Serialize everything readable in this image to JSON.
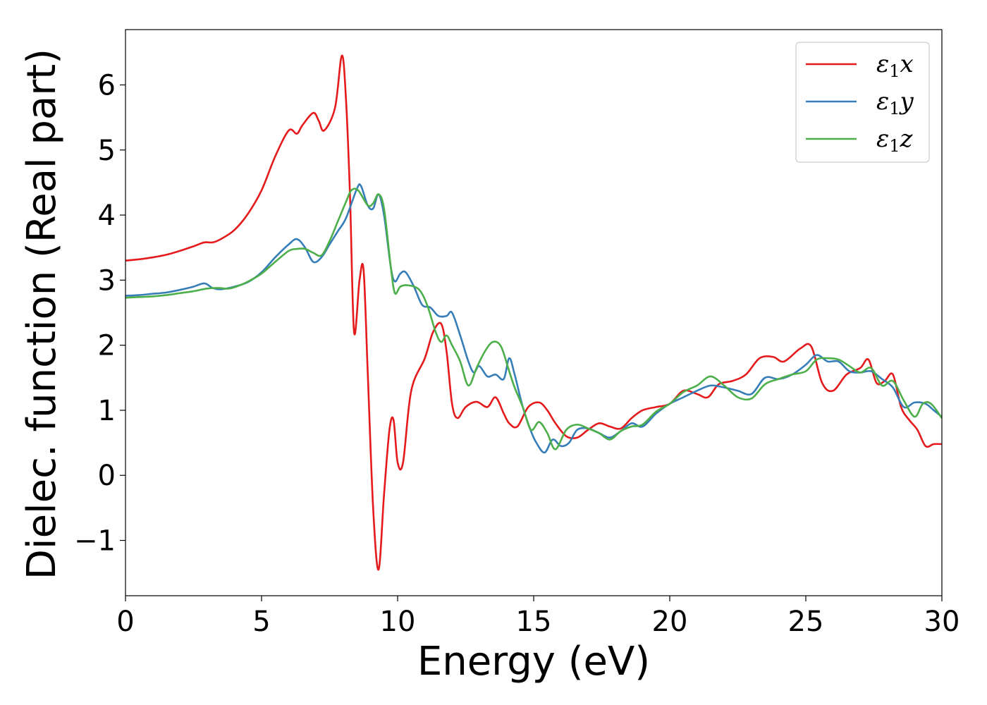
{
  "chart_data": {
    "type": "line",
    "title": "",
    "xlabel": "Energy (eV)",
    "ylabel": "Dielec. function (Real part)",
    "xlim": [
      0,
      30
    ],
    "ylim": [
      -1.85,
      6.85
    ],
    "xticks": [
      0,
      5,
      10,
      15,
      20,
      25,
      30
    ],
    "yticks": [
      -1,
      0,
      1,
      2,
      3,
      4,
      5,
      6
    ],
    "ytick_labels": [
      "−1",
      "0",
      "1",
      "2",
      "3",
      "4",
      "5",
      "6"
    ],
    "grid": false,
    "legend": "top-right",
    "series": [
      {
        "name": "ε₁x",
        "name_main": "ε",
        "name_sub": "1",
        "name_tail": "x",
        "color": "#e41a1c",
        "x": [
          0,
          0.5,
          1,
          1.5,
          2,
          2.5,
          2.9,
          3.2,
          3.5,
          4,
          4.5,
          5,
          5.5,
          6,
          6.3,
          6.5,
          6.9,
          7.1,
          7.3,
          7.7,
          7.95,
          8.1,
          8.25,
          8.4,
          8.6,
          8.75,
          8.9,
          9.1,
          9.3,
          9.5,
          9.7,
          9.85,
          10.0,
          10.2,
          10.5,
          11.0,
          11.3,
          11.6,
          11.8,
          12.0,
          12.2,
          12.5,
          12.9,
          13.3,
          13.6,
          13.9,
          14.1,
          14.4,
          14.8,
          15.2,
          15.5,
          15.8,
          16.2,
          16.6,
          17.0,
          17.4,
          17.8,
          18.2,
          18.6,
          19.0,
          19.5,
          20.0,
          20.5,
          21.0,
          21.4,
          21.8,
          22.3,
          22.8,
          23.3,
          23.8,
          24.2,
          24.8,
          25.2,
          25.6,
          26.0,
          26.5,
          27.0,
          27.3,
          27.6,
          27.9,
          28.2,
          28.5,
          28.8,
          29.1,
          29.4,
          29.7,
          30.0
        ],
        "y": [
          3.3,
          3.32,
          3.35,
          3.39,
          3.45,
          3.52,
          3.58,
          3.58,
          3.63,
          3.77,
          4.02,
          4.38,
          4.9,
          5.3,
          5.25,
          5.38,
          5.57,
          5.45,
          5.3,
          5.65,
          6.45,
          5.8,
          4.3,
          2.2,
          3.0,
          3.15,
          1.6,
          -0.5,
          -1.45,
          -0.3,
          0.7,
          0.85,
          0.2,
          0.2,
          1.3,
          1.8,
          2.2,
          2.33,
          1.9,
          1.1,
          0.88,
          1.05,
          1.13,
          1.05,
          1.2,
          0.95,
          0.8,
          0.75,
          1.05,
          1.12,
          1.0,
          0.8,
          0.6,
          0.58,
          0.7,
          0.8,
          0.75,
          0.72,
          0.88,
          1.0,
          1.05,
          1.1,
          1.3,
          1.25,
          1.2,
          1.4,
          1.45,
          1.55,
          1.8,
          1.82,
          1.75,
          1.95,
          1.98,
          1.42,
          1.3,
          1.55,
          1.65,
          1.78,
          1.42,
          1.45,
          1.55,
          1.05,
          0.85,
          0.7,
          0.45,
          0.48,
          0.48
        ]
      },
      {
        "name": "ε₁y",
        "name_main": "ε",
        "name_sub": "1",
        "name_tail": "y",
        "color": "#377eb8",
        "x": [
          0,
          0.5,
          1,
          1.5,
          2,
          2.5,
          2.9,
          3.2,
          3.5,
          4,
          4.5,
          5,
          5.5,
          6,
          6.3,
          6.6,
          6.9,
          7.2,
          7.5,
          7.8,
          8.1,
          8.5,
          8.65,
          8.9,
          9.1,
          9.3,
          9.5,
          9.75,
          9.9,
          10.1,
          10.3,
          10.6,
          10.9,
          11.2,
          11.5,
          11.8,
          12.0,
          12.3,
          12.6,
          12.8,
          13.0,
          13.3,
          13.6,
          13.9,
          14.1,
          14.3,
          14.6,
          14.9,
          15.1,
          15.4,
          15.7,
          16.0,
          16.3,
          16.6,
          17.0,
          17.4,
          17.8,
          18.2,
          18.6,
          19.0,
          19.5,
          20.0,
          20.5,
          21.0,
          21.5,
          22.0,
          22.5,
          23.0,
          23.5,
          24.0,
          24.5,
          25.0,
          25.4,
          25.8,
          26.2,
          26.6,
          27.0,
          27.4,
          27.8,
          28.2,
          28.6,
          29.0,
          29.4,
          29.7,
          30.0
        ],
        "y": [
          2.76,
          2.77,
          2.79,
          2.81,
          2.85,
          2.9,
          2.95,
          2.88,
          2.86,
          2.9,
          2.97,
          3.12,
          3.35,
          3.55,
          3.63,
          3.5,
          3.28,
          3.35,
          3.55,
          3.75,
          3.95,
          4.4,
          4.45,
          4.15,
          4.1,
          4.32,
          4.0,
          3.2,
          2.98,
          3.1,
          3.12,
          2.9,
          2.62,
          2.58,
          2.45,
          2.45,
          2.5,
          2.15,
          1.75,
          1.58,
          1.68,
          1.52,
          1.55,
          1.48,
          1.8,
          1.55,
          1.05,
          0.68,
          0.5,
          0.35,
          0.55,
          0.45,
          0.5,
          0.7,
          0.72,
          0.65,
          0.58,
          0.68,
          0.8,
          0.75,
          0.95,
          1.1,
          1.2,
          1.3,
          1.38,
          1.35,
          1.3,
          1.25,
          1.5,
          1.48,
          1.55,
          1.7,
          1.85,
          1.75,
          1.75,
          1.6,
          1.58,
          1.6,
          1.48,
          1.35,
          1.05,
          1.12,
          1.1,
          1.0,
          0.9
        ]
      },
      {
        "name": "ε₁z",
        "name_main": "ε",
        "name_sub": "1",
        "name_tail": "z",
        "color": "#4daf4a",
        "x": [
          0,
          0.5,
          1,
          1.5,
          2,
          2.5,
          3,
          3.4,
          3.8,
          4.2,
          4.6,
          5,
          5.5,
          6,
          6.3,
          6.6,
          6.9,
          7.2,
          7.5,
          7.8,
          8.1,
          8.3,
          8.55,
          8.9,
          9.1,
          9.3,
          9.5,
          9.75,
          9.9,
          10.1,
          10.4,
          10.8,
          11.1,
          11.4,
          11.6,
          11.8,
          12.0,
          12.3,
          12.6,
          12.9,
          13.2,
          13.5,
          13.8,
          14.1,
          14.3,
          14.6,
          14.9,
          15.2,
          15.5,
          15.8,
          16.2,
          16.6,
          17.0,
          17.4,
          17.8,
          18.2,
          18.6,
          19.0,
          19.5,
          20.0,
          20.5,
          21.0,
          21.5,
          22.0,
          22.5,
          23.0,
          23.5,
          24.0,
          24.5,
          25.0,
          25.4,
          25.8,
          26.2,
          26.6,
          27.0,
          27.4,
          27.8,
          28.2,
          28.6,
          29.0,
          29.3,
          29.6,
          30.0
        ],
        "y": [
          2.73,
          2.74,
          2.75,
          2.77,
          2.8,
          2.83,
          2.87,
          2.88,
          2.87,
          2.92,
          3.0,
          3.1,
          3.28,
          3.45,
          3.48,
          3.48,
          3.42,
          3.38,
          3.6,
          3.9,
          4.2,
          4.38,
          4.38,
          4.15,
          4.18,
          4.32,
          4.1,
          3.2,
          2.8,
          2.9,
          2.92,
          2.85,
          2.6,
          2.2,
          2.05,
          2.15,
          2.0,
          1.75,
          1.38,
          1.65,
          1.9,
          2.05,
          1.98,
          1.6,
          1.35,
          1.05,
          0.7,
          0.82,
          0.65,
          0.4,
          0.7,
          0.78,
          0.72,
          0.65,
          0.55,
          0.68,
          0.75,
          0.78,
          0.98,
          1.1,
          1.28,
          1.38,
          1.52,
          1.38,
          1.2,
          1.18,
          1.4,
          1.48,
          1.55,
          1.6,
          1.78,
          1.8,
          1.78,
          1.68,
          1.58,
          1.65,
          1.38,
          1.45,
          1.15,
          0.9,
          1.1,
          1.1,
          0.88
        ]
      }
    ]
  }
}
